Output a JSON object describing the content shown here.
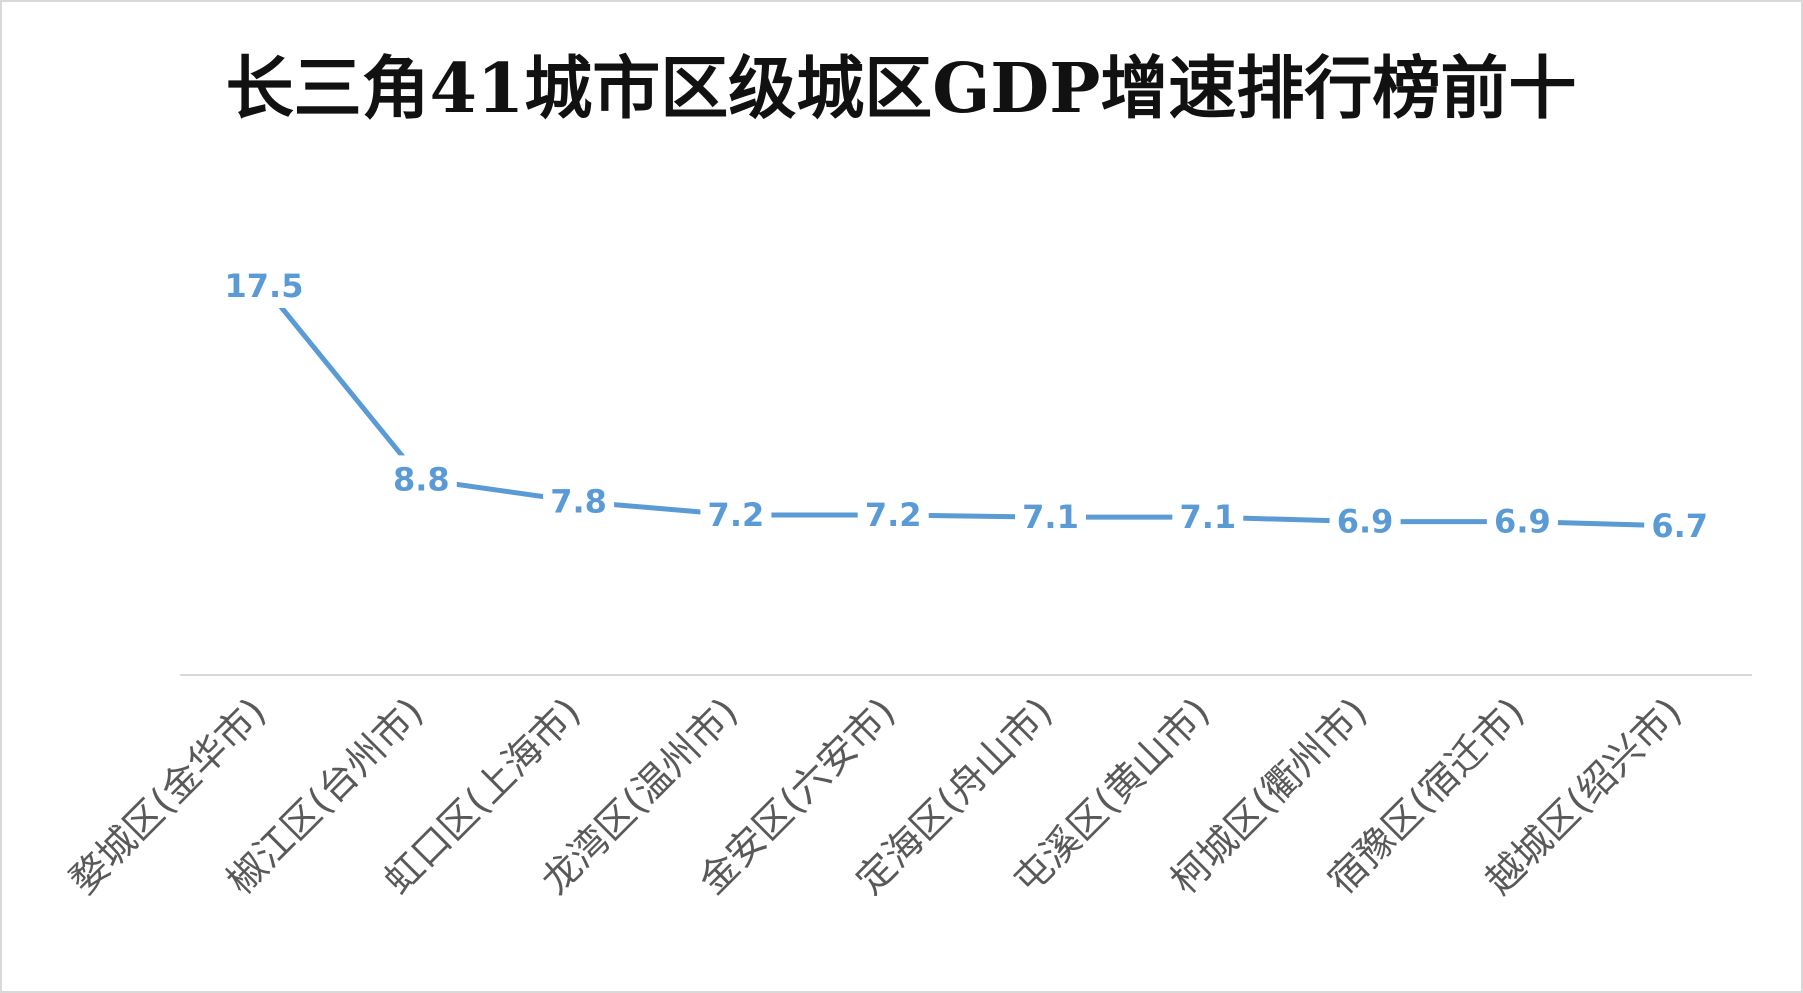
{
  "chart_data": {
    "type": "line",
    "title": "长三角41城市区级城区GDP增速排行榜前十",
    "categories": [
      "婺城区(金华市)",
      "椒江区(台州市)",
      "虹口区(上海市)",
      "龙湾区(温州市)",
      "金安区(六安市)",
      "定海区(舟山市)",
      "屯溪区(黄山市)",
      "柯城区(衢州市)",
      "宿豫区(宿迁市)",
      "越城区(绍兴市)"
    ],
    "values": [
      17.5,
      8.8,
      7.8,
      7.2,
      7.2,
      7.1,
      7.1,
      6.9,
      6.9,
      6.7
    ],
    "data_labels": [
      "17.5",
      "8.8",
      "7.8",
      "7.2",
      "7.2",
      "7.1",
      "7.1",
      "6.9",
      "6.9",
      "6.7"
    ],
    "ylim": [
      0,
      20
    ],
    "grid": false,
    "legend": "none",
    "colors": {
      "line": "#5b9bd5",
      "axis": "#d9d9d9",
      "tick_text": "#595959",
      "title": "#111111",
      "border": "#d9d9d9"
    }
  }
}
